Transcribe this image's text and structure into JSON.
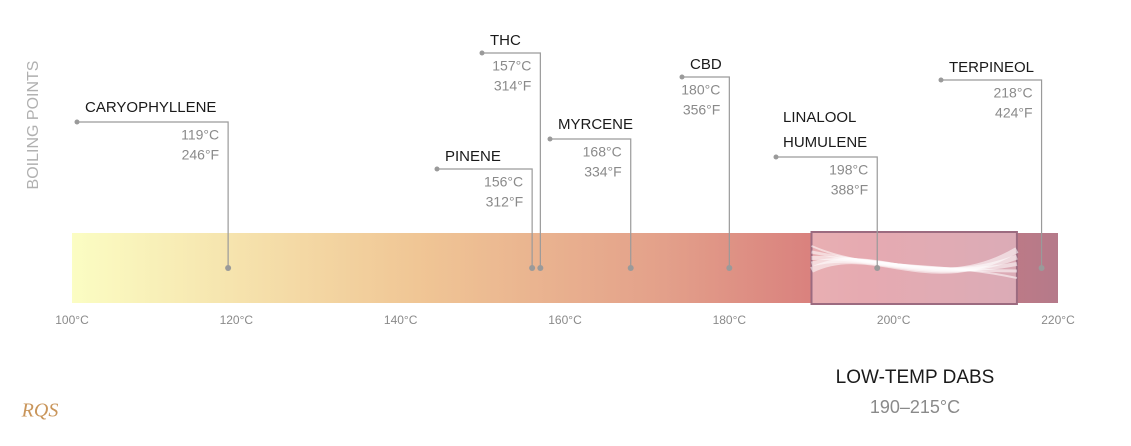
{
  "chart_data": {
    "type": "temperature_scale",
    "ylabel": "BOILING POINTS",
    "xlim": [
      100,
      220
    ],
    "xticks": [
      {
        "value": 100,
        "label": "100°C"
      },
      {
        "value": 120,
        "label": "120°C"
      },
      {
        "value": 140,
        "label": "140°C"
      },
      {
        "value": 160,
        "label": "160°C"
      },
      {
        "value": 180,
        "label": "180°C"
      },
      {
        "value": 200,
        "label": "200°C"
      },
      {
        "value": 220,
        "label": "220°C"
      }
    ],
    "categories": [
      "CARYOPHYLLENE",
      "PINENE",
      "THC",
      "MYRCENE",
      "CBD",
      [
        "LINALOOL",
        "HUMULENE"
      ],
      "TERPINEOL"
    ],
    "values": [
      119,
      156,
      157,
      168,
      180,
      198,
      218
    ],
    "value_labels": [
      "119°C",
      "156°C",
      "157°C",
      "168°C",
      "180°C",
      "198°C",
      "218°C"
    ],
    "fahrenheit_labels": [
      "246°F",
      "312°F",
      "314°F",
      "334°F",
      "356°F",
      "388°F",
      "424°F"
    ],
    "range": {
      "title": "LOW-TEMP DABS",
      "label": "190–215°C",
      "values": [
        190,
        215
      ]
    },
    "logo": "RQS"
  }
}
